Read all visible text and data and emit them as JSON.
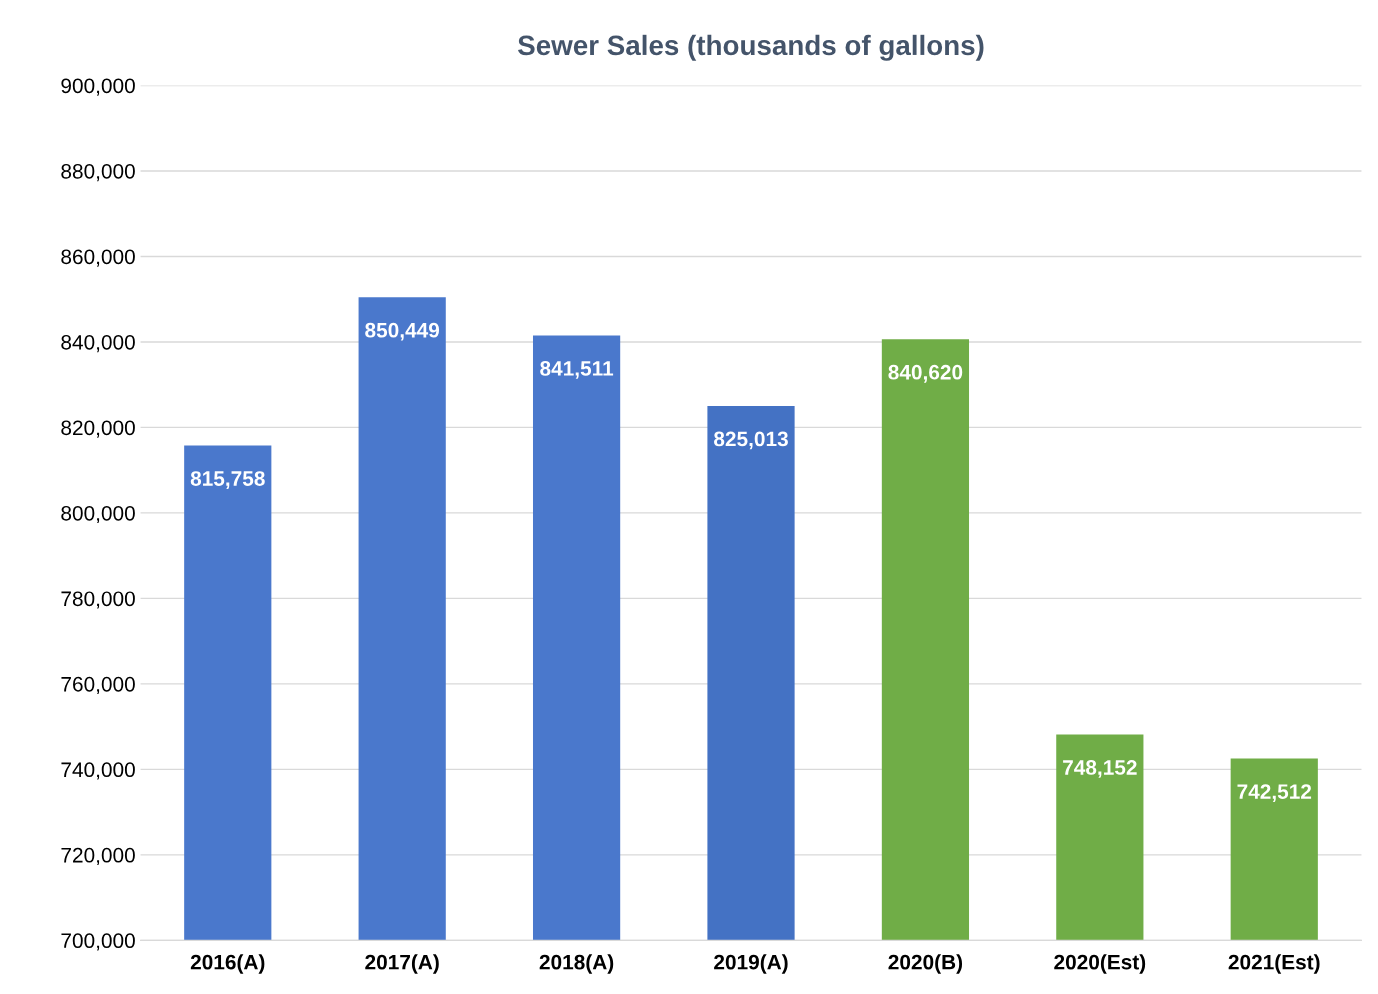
{
  "chart_data": {
    "type": "bar",
    "title": "Sewer Sales (thousands of gallons)",
    "categories": [
      "2016(A)",
      "2017(A)",
      "2018(A)",
      "2019(A)",
      "2020(B)",
      "2020(Est)",
      "2021(Est)"
    ],
    "values": [
      815758,
      850449,
      841511,
      825013,
      840620,
      748152,
      742512
    ],
    "colors": [
      "#4a78cc",
      "#4a78cc",
      "#4a78cc",
      "#4472c4",
      "#70ad47",
      "#70ad47",
      "#70ad47"
    ],
    "ylim": [
      700000,
      900000
    ],
    "yticks": [
      {
        "value": 700000,
        "label": "700,000"
      },
      {
        "value": 720000,
        "label": "720,000"
      },
      {
        "value": 740000,
        "label": "740,000"
      },
      {
        "value": 760000,
        "label": "760,000"
      },
      {
        "value": 780000,
        "label": "780,000"
      },
      {
        "value": 800000,
        "label": "800,000"
      },
      {
        "value": 820000,
        "label": "820,000"
      },
      {
        "value": 840000,
        "label": "840,000"
      },
      {
        "value": 860000,
        "label": "860,000"
      },
      {
        "value": 880000,
        "label": "880,000"
      },
      {
        "value": 900000,
        "label": "900,000"
      }
    ],
    "value_labels": [
      "815,758",
      "850,449",
      "841,511",
      "825,013",
      "840,620",
      "748,152",
      "742,512"
    ],
    "grid": "y",
    "legend": false
  }
}
